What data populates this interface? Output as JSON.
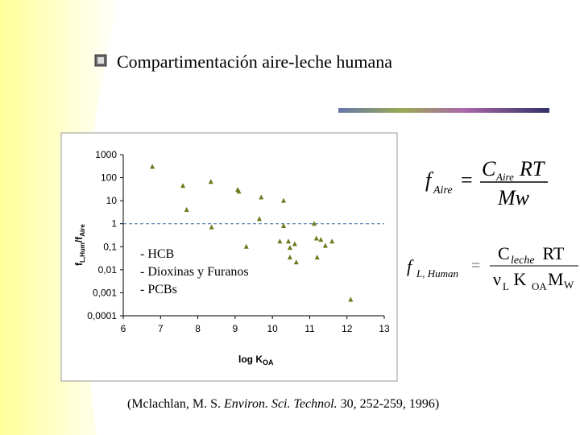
{
  "slide": {
    "title": "Compartimentación aire-leche humana"
  },
  "chart_data": {
    "type": "scatter",
    "x_label": {
      "main": "log K",
      "sub": "OA"
    },
    "y_label": {
      "a": "f",
      "a_sub": "L,Hum",
      "b": "/f",
      "b_sub": "Aire"
    },
    "x": [
      6.78,
      7.6,
      7.7,
      8.35,
      8.37,
      9.07,
      9.1,
      9.3,
      9.7,
      9.65,
      10.2,
      10.3,
      10.3,
      10.43,
      10.47,
      10.6,
      10.47,
      10.64,
      11.12,
      11.18,
      11.3,
      11.42,
      11.6,
      11.2,
      12.1
    ],
    "values": [
      300,
      44,
      4,
      66,
      0.7,
      30,
      25,
      0.1,
      14,
      1.6,
      0.17,
      10,
      0.8,
      0.17,
      0.09,
      0.13,
      0.034,
      0.021,
      1,
      0.23,
      0.2,
      0.11,
      0.17,
      0.034,
      0.0005
    ],
    "color": "#6b7a1c",
    "xlim": [
      6,
      13
    ],
    "xticks": [
      6,
      7,
      8,
      9,
      10,
      11,
      12,
      13
    ],
    "ylim": [
      0.0001,
      1000
    ],
    "ylog": true,
    "yticks": [
      {
        "value": 0.0001,
        "label": "0,0001"
      },
      {
        "value": 0.001,
        "label": "0,001"
      },
      {
        "value": 0.01,
        "label": "0,01"
      },
      {
        "value": 0.1,
        "label": "0,1"
      },
      1,
      10,
      100,
      1000
    ],
    "reference_line": 1,
    "legend_text": [
      "- HCB",
      "- Dioxinas y Furanos",
      "- PCBs"
    ]
  },
  "formula_air": {
    "lhs": "f",
    "lhs_sub": "Aire",
    "eq": "=",
    "num": "C",
    "num_sub": "Aire",
    "num_rest": "RT",
    "den": "Mw"
  },
  "formula_human": {
    "lhs": "f",
    "lhs_sub": "L, Human",
    "eq": "=",
    "num": "C",
    "num_sub": "leche",
    "num_rest": " RT",
    "den_a": "ν",
    "den_a_sub": "L",
    "den_b": " K",
    "den_b_sub": "OA",
    "den_c": "M",
    "den_c_sub": "W"
  },
  "citation": {
    "a": "(Mclachlan, M. S. ",
    "b": "Environ. Sci. Technol.",
    "c": " 30, 252-259, 1996)"
  }
}
